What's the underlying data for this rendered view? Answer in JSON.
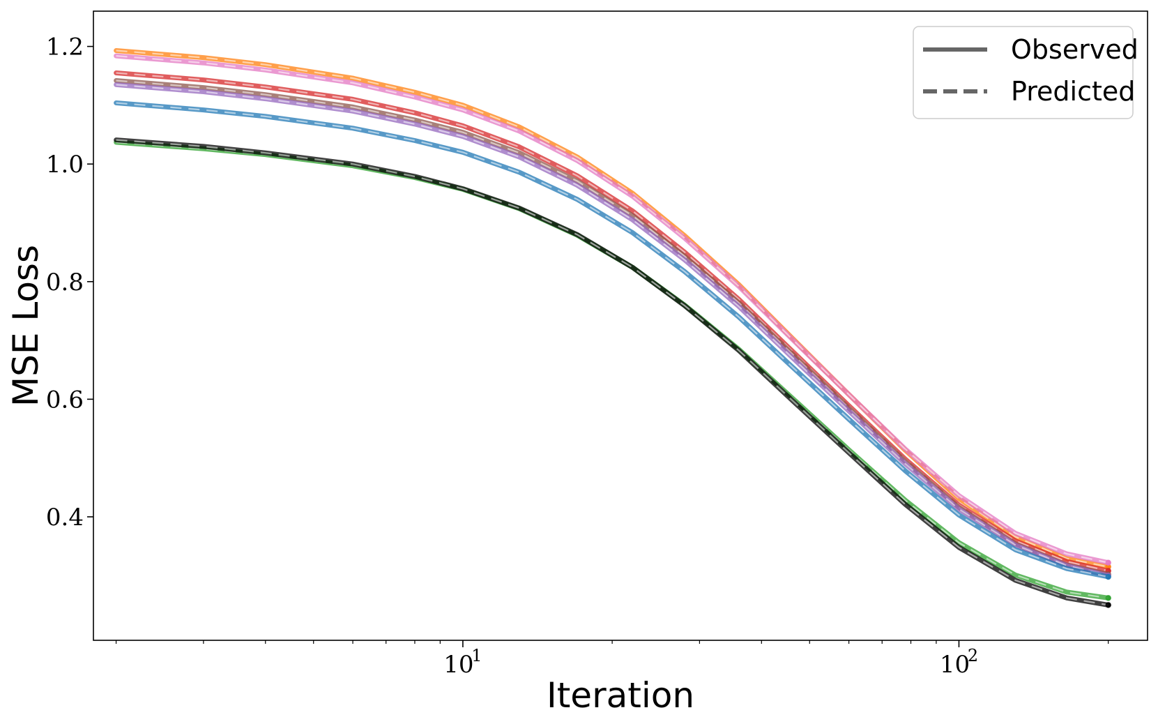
{
  "chart_data": {
    "type": "line",
    "xlabel": "Iteration",
    "ylabel": "MSE Loss",
    "xscale": "log",
    "xlim": [
      1.8,
      240
    ],
    "ylim": [
      0.19,
      1.26
    ],
    "x_ticks": [
      {
        "value": 10,
        "label": "10",
        "exp": "1"
      },
      {
        "value": 100,
        "label": "10",
        "exp": "2"
      }
    ],
    "y_ticks": [
      {
        "value": 0.4,
        "label": "0.4"
      },
      {
        "value": 0.6,
        "label": "0.6"
      },
      {
        "value": 0.8,
        "label": "0.8"
      },
      {
        "value": 1.0,
        "label": "1.0"
      },
      {
        "value": 1.2,
        "label": "1.2"
      }
    ],
    "grid": false,
    "legend": {
      "placement": "top-right",
      "entries": [
        {
          "label": "Observed",
          "style": "solid"
        },
        {
          "label": "Predicted",
          "style": "dashed"
        }
      ]
    },
    "x": [
      2,
      3,
      4,
      6,
      8,
      10,
      13,
      17,
      22,
      28,
      36,
      46,
      60,
      78,
      100,
      130,
      165,
      200
    ],
    "series": [
      {
        "color": "#ff7f0e",
        "values": [
          1.193,
          1.181,
          1.169,
          1.146,
          1.122,
          1.1,
          1.063,
          1.012,
          0.95,
          0.878,
          0.795,
          0.705,
          0.608,
          0.513,
          0.431,
          0.366,
          0.329,
          0.315
        ]
      },
      {
        "color": "#e377c2",
        "values": [
          1.184,
          1.172,
          1.16,
          1.138,
          1.114,
          1.092,
          1.056,
          1.006,
          0.945,
          0.874,
          0.792,
          0.703,
          0.608,
          0.515,
          0.436,
          0.372,
          0.337,
          0.322
        ]
      },
      {
        "color": "#d62728",
        "values": [
          1.155,
          1.143,
          1.131,
          1.11,
          1.087,
          1.065,
          1.029,
          0.98,
          0.92,
          0.85,
          0.77,
          0.683,
          0.589,
          0.498,
          0.42,
          0.359,
          0.324,
          0.308
        ]
      },
      {
        "color": "#8c564b",
        "values": [
          1.142,
          1.13,
          1.118,
          1.097,
          1.075,
          1.054,
          1.019,
          0.971,
          0.912,
          0.843,
          0.764,
          0.678,
          0.585,
          0.494,
          0.416,
          0.354,
          0.318,
          0.302
        ]
      },
      {
        "color": "#9467bd",
        "values": [
          1.135,
          1.123,
          1.111,
          1.09,
          1.068,
          1.047,
          1.012,
          0.964,
          0.905,
          0.837,
          0.758,
          0.672,
          0.58,
          0.49,
          0.413,
          0.352,
          0.317,
          0.3
        ]
      },
      {
        "color": "#1f77b4",
        "values": [
          1.104,
          1.092,
          1.081,
          1.061,
          1.04,
          1.02,
          0.986,
          0.94,
          0.883,
          0.817,
          0.74,
          0.656,
          0.566,
          0.478,
          0.403,
          0.344,
          0.312,
          0.298
        ]
      },
      {
        "color": "#2ca02c",
        "values": [
          1.037,
          1.026,
          1.016,
          0.997,
          0.977,
          0.957,
          0.924,
          0.879,
          0.824,
          0.76,
          0.685,
          0.603,
          0.514,
          0.428,
          0.356,
          0.301,
          0.272,
          0.262
        ]
      },
      {
        "color": "#000000",
        "values": [
          1.041,
          1.03,
          1.019,
          1.0,
          0.979,
          0.958,
          0.925,
          0.88,
          0.824,
          0.759,
          0.683,
          0.599,
          0.509,
          0.421,
          0.348,
          0.292,
          0.262,
          0.25
        ]
      }
    ]
  }
}
